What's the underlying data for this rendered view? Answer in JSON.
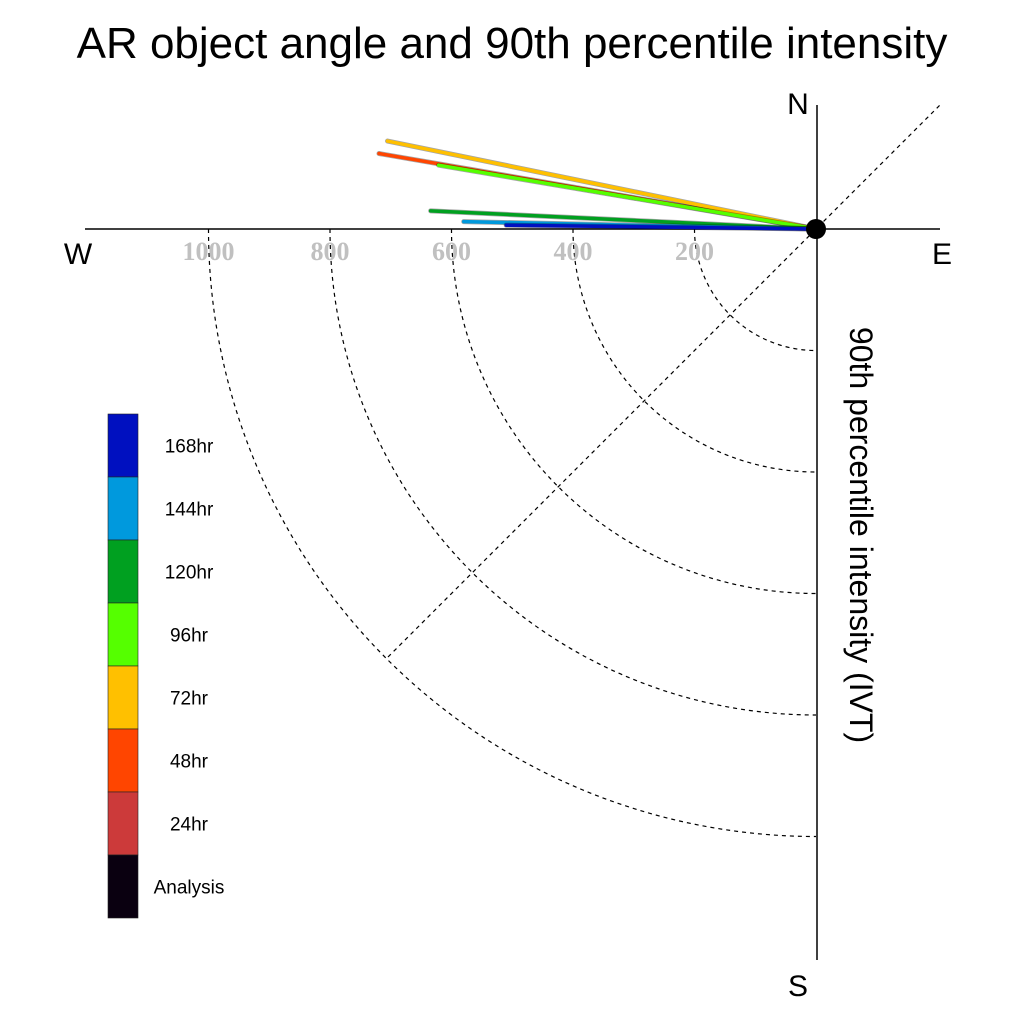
{
  "chart_data": {
    "type": "polar-quadrant",
    "title": "AR object angle and 90th percentile intensity",
    "ylabel": "90th percentile intensity (IVT)",
    "compass": {
      "north": "N",
      "south": "S",
      "east": "E",
      "west": "W"
    },
    "radial_ticks": [
      200,
      400,
      600,
      800,
      1000
    ],
    "radial_tick_labels": [
      "200",
      "400",
      "600",
      "800",
      "1000"
    ],
    "rlim": [
      0,
      1200
    ],
    "grid": true,
    "legend_position": "left",
    "angle_unit": "degrees counterclockwise from West",
    "series": [
      {
        "name": "Analysis",
        "color": "#0a0010",
        "intensity": null,
        "angle": null
      },
      {
        "name": "24hr",
        "color": "#cc3a3a",
        "intensity": null,
        "angle": null
      },
      {
        "name": "48hr",
        "color": "#ff4500",
        "intensity": 730,
        "angle": 9.8
      },
      {
        "name": "72hr",
        "color": "#ffc000",
        "intensity": 720,
        "angle": 11.6
      },
      {
        "name": "96hr",
        "color": "#55ff00",
        "intensity": 630,
        "angle": 9.6
      },
      {
        "name": "120hr",
        "color": "#00a020",
        "intensity": 635,
        "angle": 2.7
      },
      {
        "name": "144hr",
        "color": "#0099dd",
        "intensity": 580,
        "angle": 1.2
      },
      {
        "name": "168hr",
        "color": "#0010c0",
        "intensity": 510,
        "angle": 0.7
      }
    ],
    "legend_order": [
      "168hr",
      "144hr",
      "120hr",
      "96hr",
      "72hr",
      "48hr",
      "24hr",
      "Analysis"
    ]
  }
}
